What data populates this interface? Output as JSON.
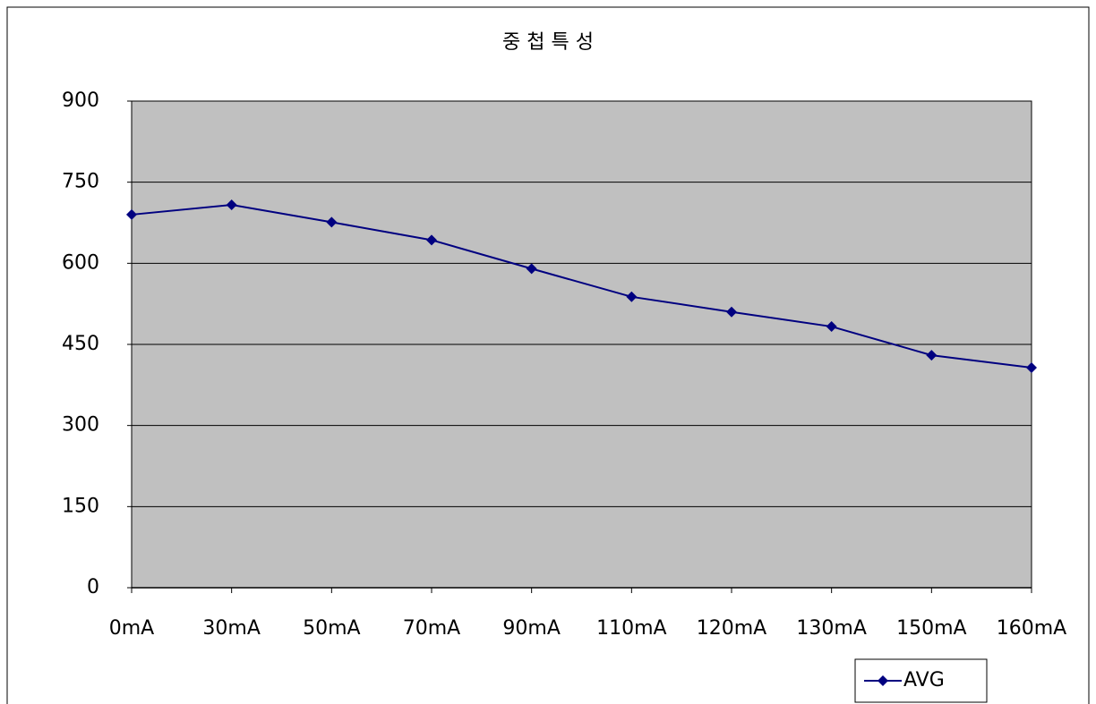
{
  "chart_data": {
    "type": "line",
    "title": "중 첩 특 성",
    "categories": [
      "0mA",
      "30mA",
      "50mA",
      "70mA",
      "90mA",
      "110mA",
      "120mA",
      "130mA",
      "150mA",
      "160mA"
    ],
    "series": [
      {
        "name": "AVG",
        "color": "#000080",
        "values": [
          690,
          708,
          676,
          643,
          590,
          538,
          510,
          483,
          430,
          407
        ]
      }
    ],
    "ylim": [
      0,
      900
    ],
    "yticks": [
      0,
      150,
      300,
      450,
      600,
      750,
      900
    ],
    "grid": true,
    "legend": "bottom-right"
  }
}
